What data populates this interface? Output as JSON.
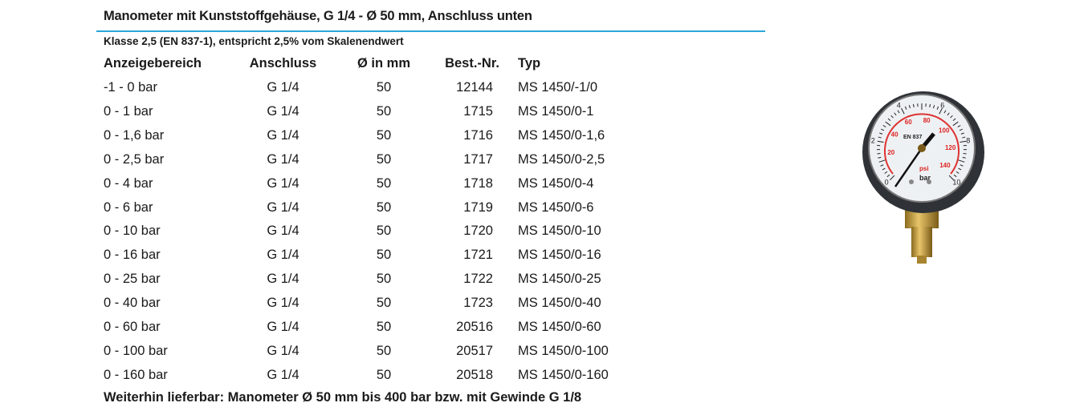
{
  "title": "Manometer mit Kunststoffgehäuse, G 1/4 - Ø 50 mm, Anschluss unten",
  "subtitle": "Klasse 2,5 (EN 837-1), entspricht 2,5% vom Skalenendwert",
  "accent_color": "#2aa7d8",
  "table": {
    "headers": [
      "Anzeigebereich",
      "Anschluss",
      "Ø in mm",
      "Best.-Nr.",
      "Typ"
    ],
    "rows": [
      [
        "-1 - 0 bar",
        "G 1/4",
        "50",
        "12144",
        "MS 1450/-1/0"
      ],
      [
        "0 - 1 bar",
        "G 1/4",
        "50",
        "1715",
        "MS 1450/0-1"
      ],
      [
        "0 - 1,6 bar",
        "G 1/4",
        "50",
        "1716",
        "MS 1450/0-1,6"
      ],
      [
        "0 - 2,5 bar",
        "G 1/4",
        "50",
        "1717",
        "MS 1450/0-2,5"
      ],
      [
        "0 - 4 bar",
        "G 1/4",
        "50",
        "1718",
        "MS 1450/0-4"
      ],
      [
        "0 - 6 bar",
        "G 1/4",
        "50",
        "1719",
        "MS 1450/0-6"
      ],
      [
        "0 - 10 bar",
        "G 1/4",
        "50",
        "1720",
        "MS 1450/0-10"
      ],
      [
        "0 - 16 bar",
        "G 1/4",
        "50",
        "1721",
        "MS 1450/0-16"
      ],
      [
        "0 - 25 bar",
        "G 1/4",
        "50",
        "1722",
        "MS 1450/0-25"
      ],
      [
        "0 - 40 bar",
        "G 1/4",
        "50",
        "1723",
        "MS 1450/0-40"
      ],
      [
        "0 - 60 bar",
        "G 1/4",
        "50",
        "20516",
        "MS 1450/0-60"
      ],
      [
        "0 - 100 bar",
        "G 1/4",
        "50",
        "20517",
        "MS 1450/0-100"
      ],
      [
        "0 - 160 bar",
        "G 1/4",
        "50",
        "20518",
        "MS 1450/0-160"
      ]
    ]
  },
  "footer": "Weiterhin lieferbar: Manometer Ø 50 mm bis 400 bar bzw. mit Gewinde G 1/8",
  "gauge": {
    "bar_labels": [
      "0",
      "2",
      "4",
      "6",
      "8",
      "10"
    ],
    "psi_labels": [
      "20",
      "40",
      "60",
      "80",
      "100",
      "120",
      "140"
    ],
    "unit_bar": "bar",
    "unit_psi": "psi",
    "standard": "EN 837"
  }
}
